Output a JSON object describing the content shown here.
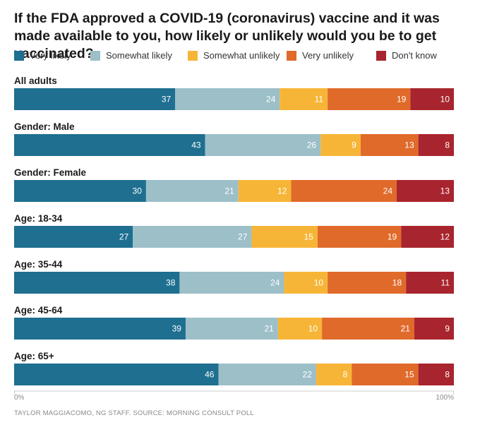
{
  "chart_data": {
    "type": "bar",
    "orientation": "horizontal",
    "stacked": true,
    "title": "If the FDA approved a COVID-19 (coronavirus) vaccine and it was made available to you, how likely or unlikely would you be to get vaccinated?",
    "categories": [
      "All adults",
      "Gender: Male",
      "Gender: Female",
      "Age: 18-34",
      "Age: 35-44",
      "Age: 45-64",
      "Age: 65+"
    ],
    "series": [
      {
        "name": "Very likely",
        "color": "#1e6f90",
        "values": [
          37,
          43,
          30,
          27,
          38,
          39,
          46
        ]
      },
      {
        "name": "Somewhat likely",
        "color": "#9cbfc8",
        "values": [
          24,
          26,
          21,
          27,
          24,
          21,
          22
        ]
      },
      {
        "name": "Somewhat unlikely",
        "color": "#f7b537",
        "values": [
          11,
          9,
          12,
          15,
          10,
          10,
          8
        ]
      },
      {
        "name": "Very unlikely",
        "color": "#e06a2a",
        "values": [
          19,
          13,
          24,
          19,
          18,
          21,
          15
        ]
      },
      {
        "name": "Don't know",
        "color": "#a8242e",
        "values": [
          10,
          8,
          13,
          12,
          11,
          9,
          8
        ]
      }
    ],
    "xlim": [
      0,
      100
    ],
    "x_tick_labels": [
      "0%",
      "100%"
    ],
    "legend_position": "top-left",
    "grid": false
  },
  "footer": {
    "credit": "TAYLOR MAGGIACOMO, NG STAFF. SOURCE: MORNING CONSULT POLL"
  }
}
